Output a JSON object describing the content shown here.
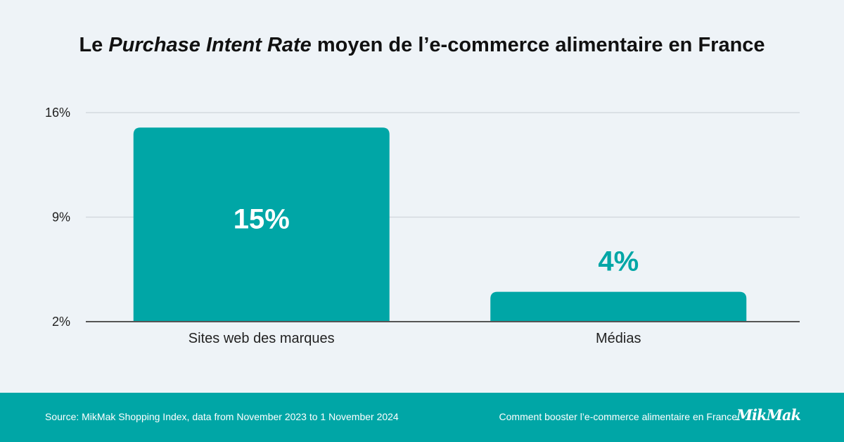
{
  "title": {
    "prefix": "Le ",
    "emphasis": "Purchase Intent Rate",
    "suffix": " moyen de l’e-commerce alimentaire en France"
  },
  "chart_data": {
    "type": "bar",
    "categories": [
      "Sites web des marques",
      "Médias"
    ],
    "values": [
      15,
      4
    ],
    "value_labels": [
      "15%",
      "4%"
    ],
    "yticks": [
      2,
      9,
      16
    ],
    "ytick_labels": [
      "2%",
      "9%",
      "16%"
    ],
    "ylim": [
      2,
      16
    ],
    "grid": true,
    "colors": {
      "bar": "#00a6a6",
      "grid": "#d3d9df",
      "baseline": "#555555"
    }
  },
  "footer": {
    "source": "Source: MikMak Shopping Index, data from November 2023 to 1 November 2024",
    "guide": "Comment booster l’e-commerce alimentaire en France",
    "logo": "MikMak",
    "color": "#00a6a6"
  }
}
